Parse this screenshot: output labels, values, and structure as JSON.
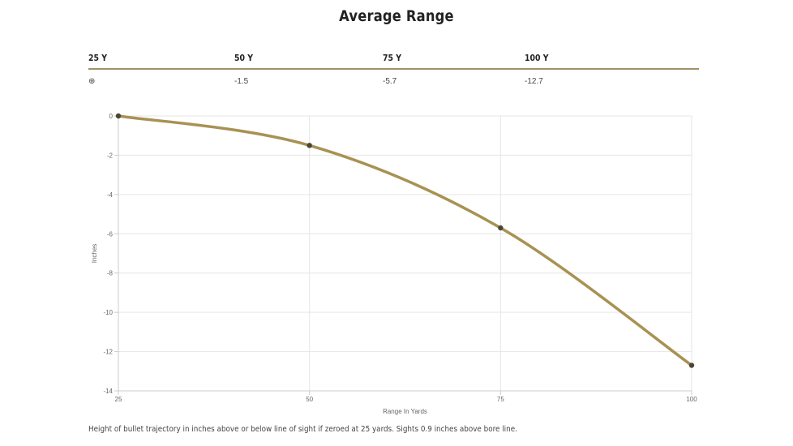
{
  "title": "Average Range",
  "table": {
    "headers": [
      "25 Y",
      "50 Y",
      "75 Y",
      "100 Y"
    ],
    "row_icon": "⊕",
    "row_icon_name": "reticle-icon",
    "values": [
      "",
      "-1.5",
      "-5.7",
      "-12.7"
    ]
  },
  "chart_data": {
    "type": "line",
    "x": [
      25,
      50,
      75,
      100
    ],
    "y": [
      0,
      -1.5,
      -5.7,
      -12.7
    ],
    "xlabel": "Range In Yards",
    "ylabel": "Inches",
    "xticks": [
      25,
      50,
      75,
      100
    ],
    "yticks": [
      0,
      -2,
      -4,
      -6,
      -8,
      -10,
      -12,
      -14
    ],
    "xlim": [
      25,
      100
    ],
    "ylim": [
      -14,
      0
    ],
    "grid": true,
    "line_color": "#a89253",
    "point_color": "#4a4536"
  },
  "caption": "Height of bullet trajectory in inches above or below line of sight if zeroed at 25 yards. Sights 0.9 inches above bore line."
}
